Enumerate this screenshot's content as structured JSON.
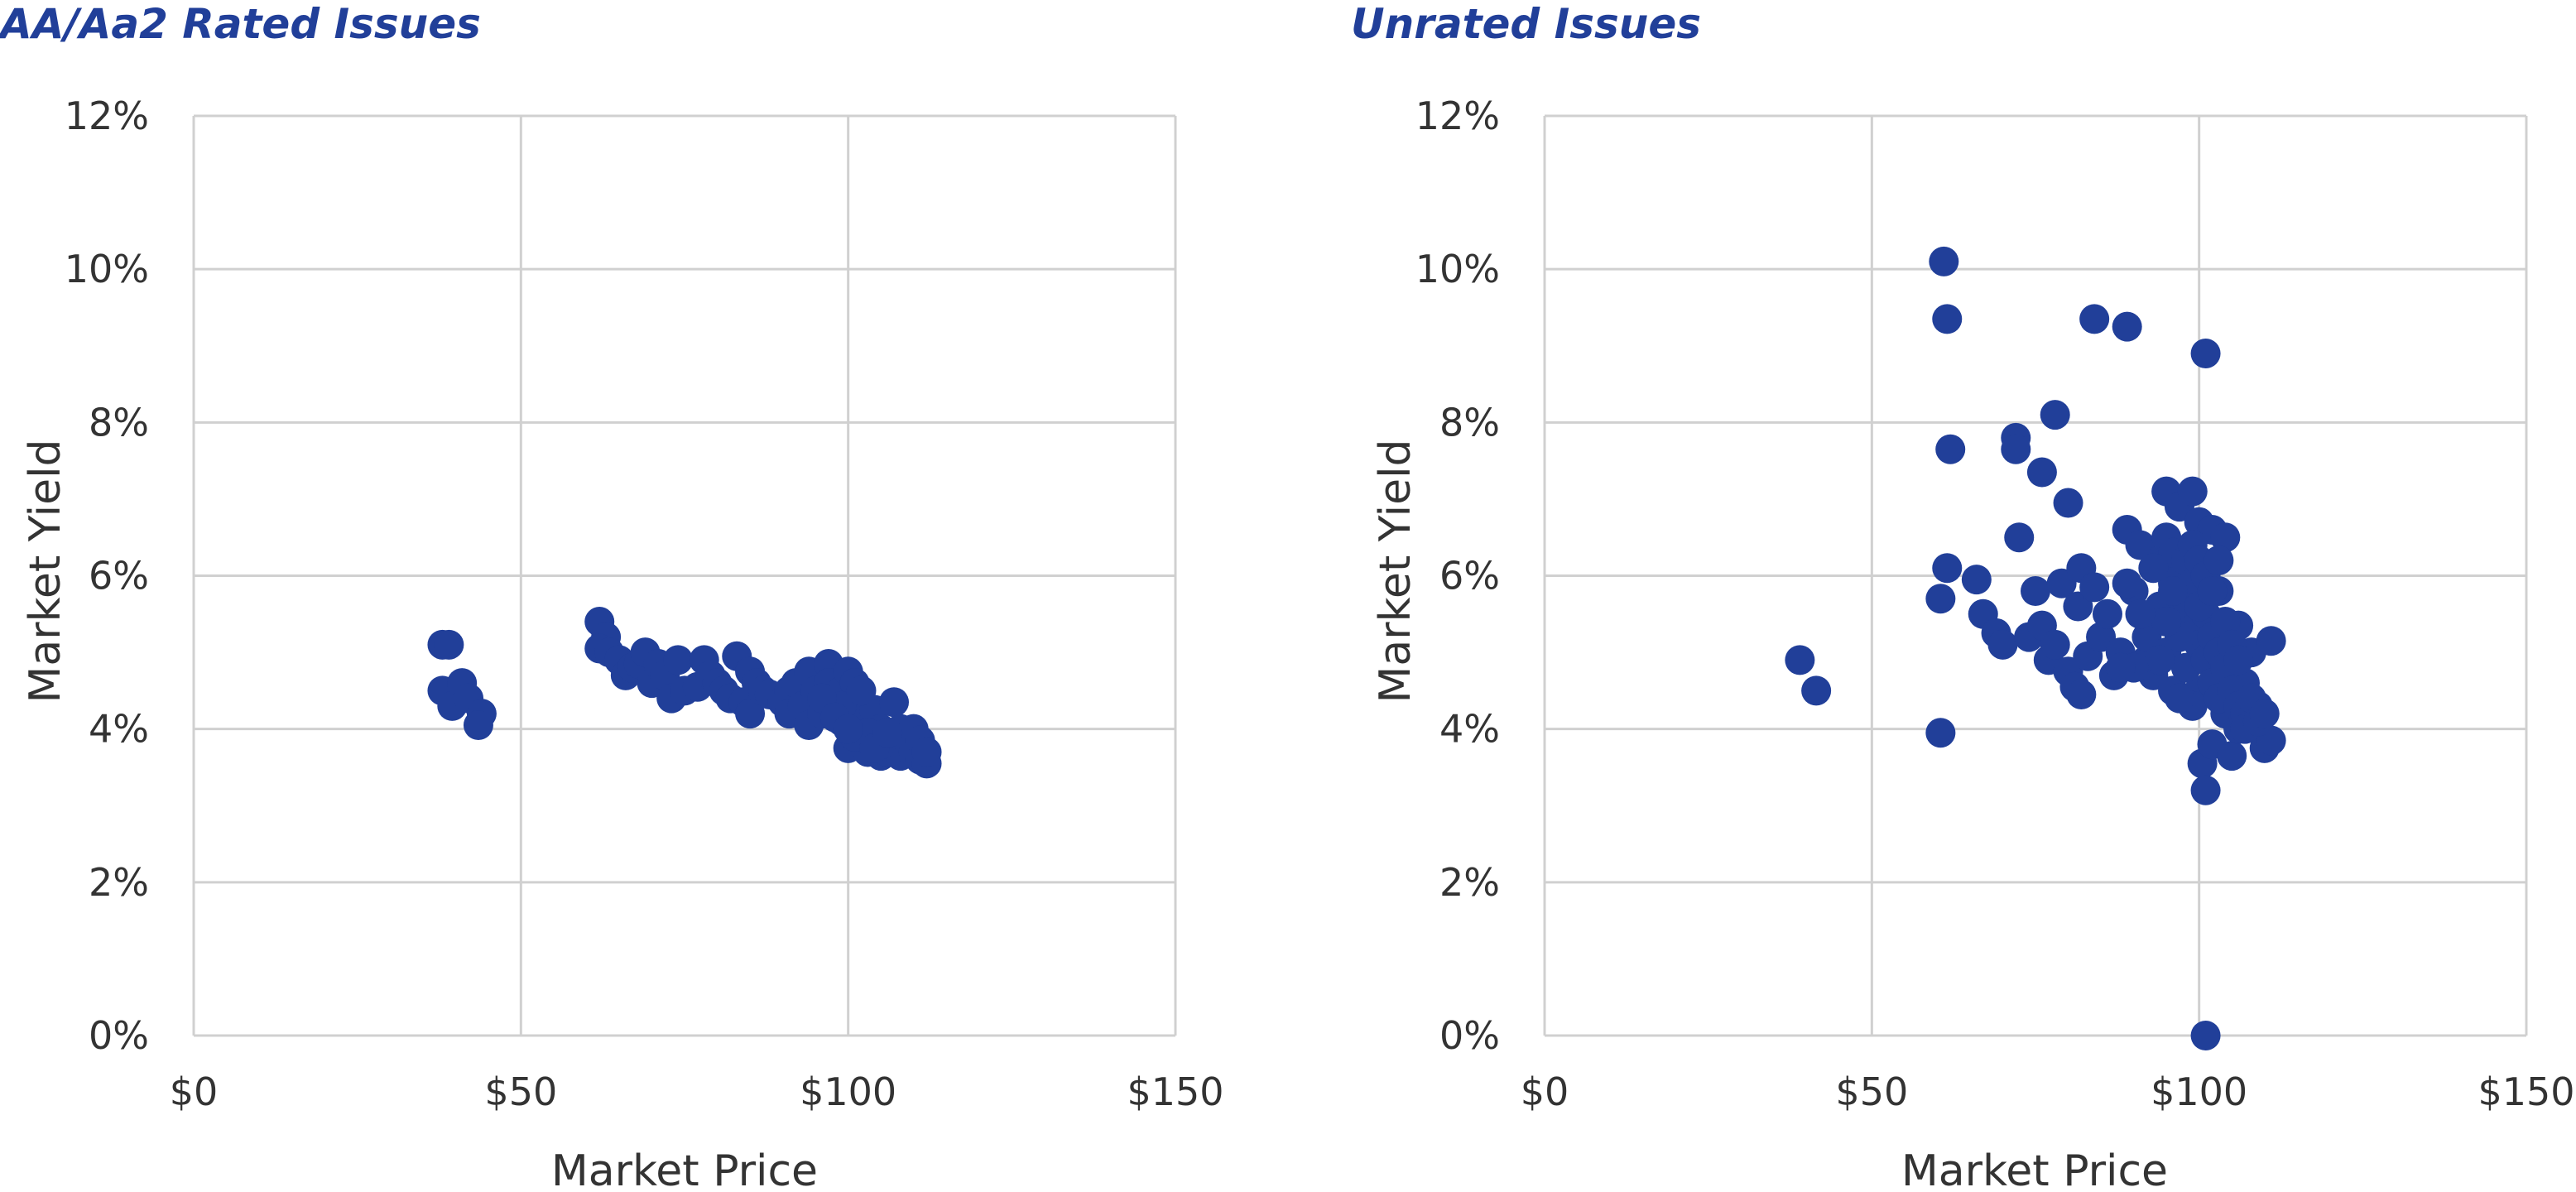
{
  "colors": {
    "marker": "#213f99",
    "title": "#213f99",
    "grid": "#d0d0d0",
    "text": "#333333"
  },
  "chart_data": [
    {
      "type": "scatter",
      "title": "AA/Aa2 Rated Issues",
      "xlabel": "Market Price",
      "ylabel": "Market Yield",
      "xlim": [
        0,
        150
      ],
      "ylim": [
        0,
        12
      ],
      "x_ticks": [
        0,
        50,
        100,
        150
      ],
      "y_ticks": [
        0,
        2,
        4,
        6,
        8,
        10,
        12
      ],
      "x_tick_labels": [
        "$0",
        "$50",
        "$100",
        "$150"
      ],
      "y_tick_labels": [
        "0%",
        "2%",
        "4%",
        "6%",
        "8%",
        "10%",
        "12%"
      ],
      "grid": true,
      "legend": "none",
      "points": [
        [
          38,
          5.1
        ],
        [
          39,
          5.1
        ],
        [
          38,
          4.5
        ],
        [
          39.5,
          4.3
        ],
        [
          41,
          4.6
        ],
        [
          42,
          4.4
        ],
        [
          44,
          4.2
        ],
        [
          43.5,
          4.05
        ],
        [
          62,
          5.4
        ],
        [
          63,
          5.2
        ],
        [
          62,
          5.05
        ],
        [
          63.5,
          5.0
        ],
        [
          65,
          4.9
        ],
        [
          66,
          4.7
        ],
        [
          67,
          4.8
        ],
        [
          68,
          4.85
        ],
        [
          69,
          5.0
        ],
        [
          70,
          4.6
        ],
        [
          71,
          4.85
        ],
        [
          72,
          4.7
        ],
        [
          73,
          4.4
        ],
        [
          74,
          4.9
        ],
        [
          75,
          4.5
        ],
        [
          77,
          4.55
        ],
        [
          78,
          4.9
        ],
        [
          79,
          4.7
        ],
        [
          80,
          4.6
        ],
        [
          81,
          4.5
        ],
        [
          82,
          4.4
        ],
        [
          83,
          4.95
        ],
        [
          84,
          4.35
        ],
        [
          85,
          4.2
        ],
        [
          85,
          4.75
        ],
        [
          86,
          4.6
        ],
        [
          87,
          4.5
        ],
        [
          88,
          4.45
        ],
        [
          90,
          4.35
        ],
        [
          91,
          4.5
        ],
        [
          91,
          4.2
        ],
        [
          92,
          4.6
        ],
        [
          93,
          4.3
        ],
        [
          94,
          4.75
        ],
        [
          94,
          4.05
        ],
        [
          95,
          4.5
        ],
        [
          96,
          4.2
        ],
        [
          97,
          4.85
        ],
        [
          97,
          4.6
        ],
        [
          98,
          4.4
        ],
        [
          99,
          4.1
        ],
        [
          99,
          4.5
        ],
        [
          100,
          4.75
        ],
        [
          100,
          3.75
        ],
        [
          101,
          4.6
        ],
        [
          101,
          4.2
        ],
        [
          102,
          3.95
        ],
        [
          102,
          4.35
        ],
        [
          103,
          3.7
        ],
        [
          103,
          4.1
        ],
        [
          104,
          3.85
        ],
        [
          104,
          4.25
        ],
        [
          105,
          3.65
        ],
        [
          105,
          4.0
        ],
        [
          106,
          3.9
        ],
        [
          106,
          3.7
        ],
        [
          107,
          4.35
        ],
        [
          107,
          3.8
        ],
        [
          108,
          3.65
        ],
        [
          108,
          4.0
        ],
        [
          109,
          3.75
        ],
        [
          109,
          3.9
        ],
        [
          110,
          3.7
        ],
        [
          110,
          4.0
        ],
        [
          111,
          3.85
        ],
        [
          111,
          3.6
        ],
        [
          112,
          3.55
        ],
        [
          112,
          3.7
        ],
        [
          99,
          4.3
        ],
        [
          101,
          3.9
        ],
        [
          103,
          3.95
        ],
        [
          105,
          3.8
        ],
        [
          96,
          4.4
        ],
        [
          98,
          4.15
        ],
        [
          100,
          4.0
        ],
        [
          102,
          4.5
        ],
        [
          104,
          3.75
        ],
        [
          106,
          3.95
        ]
      ]
    },
    {
      "type": "scatter",
      "title": "Unrated Issues",
      "xlabel": "Market Price",
      "ylabel": "Market Yield",
      "xlim": [
        0,
        150
      ],
      "ylim": [
        0,
        12
      ],
      "x_ticks": [
        0,
        50,
        100,
        150
      ],
      "y_ticks": [
        0,
        2,
        4,
        6,
        8,
        10,
        12
      ],
      "x_tick_labels": [
        "$0",
        "$50",
        "$100",
        "$150"
      ],
      "y_tick_labels": [
        "0%",
        "2%",
        "4%",
        "6%",
        "8%",
        "10%",
        "12%"
      ],
      "grid": true,
      "legend": "none",
      "points": [
        [
          39,
          4.9
        ],
        [
          41.5,
          4.5
        ],
        [
          61,
          10.1
        ],
        [
          61.5,
          9.35
        ],
        [
          84,
          9.35
        ],
        [
          89,
          9.25
        ],
        [
          101,
          8.9
        ],
        [
          62,
          7.65
        ],
        [
          72,
          7.8
        ],
        [
          72,
          7.65
        ],
        [
          76,
          7.35
        ],
        [
          78,
          8.1
        ],
        [
          80,
          6.95
        ],
        [
          60.5,
          5.7
        ],
        [
          61.5,
          6.1
        ],
        [
          60.5,
          3.95
        ],
        [
          66,
          5.95
        ],
        [
          67,
          5.5
        ],
        [
          69,
          5.25
        ],
        [
          70,
          5.1
        ],
        [
          72.5,
          6.5
        ],
        [
          74,
          5.2
        ],
        [
          75,
          5.8
        ],
        [
          76,
          5.35
        ],
        [
          77,
          4.9
        ],
        [
          78,
          5.1
        ],
        [
          79,
          5.9
        ],
        [
          80,
          4.75
        ],
        [
          81,
          4.55
        ],
        [
          81.5,
          5.6
        ],
        [
          82,
          6.1
        ],
        [
          82,
          4.45
        ],
        [
          83,
          4.95
        ],
        [
          84,
          5.85
        ],
        [
          85,
          5.2
        ],
        [
          86,
          5.5
        ],
        [
          87,
          4.7
        ],
        [
          88,
          5.0
        ],
        [
          89,
          6.6
        ],
        [
          90,
          5.8
        ],
        [
          91,
          6.4
        ],
        [
          92,
          4.9
        ],
        [
          93,
          5.4
        ],
        [
          94,
          6.2
        ],
        [
          95,
          7.1
        ],
        [
          96,
          5.9
        ],
        [
          97,
          6.9
        ],
        [
          98,
          5.5
        ],
        [
          99,
          7.1
        ],
        [
          100,
          6.7
        ],
        [
          100,
          4.5
        ],
        [
          100.5,
          3.55
        ],
        [
          101,
          3.2
        ],
        [
          101,
          0.0
        ],
        [
          102,
          3.8
        ],
        [
          102,
          6.6
        ],
        [
          103,
          5.8
        ],
        [
          104,
          4.2
        ],
        [
          104,
          6.5
        ],
        [
          105,
          3.65
        ],
        [
          106,
          4.0
        ],
        [
          107,
          4.6
        ],
        [
          108,
          5.0
        ],
        [
          109,
          4.3
        ],
        [
          110,
          3.75
        ],
        [
          111,
          5.15
        ],
        [
          111,
          3.85
        ],
        [
          106,
          5.35
        ],
        [
          92,
          5.2
        ],
        [
          93,
          4.7
        ],
        [
          94,
          5.6
        ],
        [
          95,
          5.0
        ],
        [
          96,
          4.5
        ],
        [
          97,
          6.0
        ],
        [
          98,
          4.8
        ],
        [
          99,
          5.3
        ],
        [
          99,
          4.3
        ],
        [
          100,
          5.9
        ],
        [
          100,
          5.1
        ],
        [
          101,
          5.5
        ],
        [
          101,
          4.9
        ],
        [
          102,
          4.6
        ],
        [
          102,
          5.2
        ],
        [
          103,
          4.4
        ],
        [
          103,
          5.0
        ],
        [
          104,
          4.8
        ],
        [
          104,
          5.4
        ],
        [
          105,
          4.5
        ],
        [
          105,
          5.1
        ],
        [
          106,
          4.3
        ],
        [
          106,
          4.9
        ],
        [
          107,
          4.2
        ],
        [
          107,
          4.0
        ],
        [
          108,
          4.4
        ],
        [
          109,
          4.1
        ],
        [
          110,
          4.2
        ],
        [
          95,
          6.5
        ],
        [
          96,
          6.3
        ],
        [
          97,
          5.2
        ],
        [
          98,
          6.2
        ],
        [
          98,
          5.7
        ],
        [
          99,
          6.4
        ],
        [
          99,
          5.9
        ],
        [
          100,
          6.2
        ],
        [
          100,
          5.6
        ],
        [
          101,
          6.0
        ],
        [
          102,
          5.8
        ],
        [
          103,
          6.2
        ],
        [
          97,
          4.4
        ],
        [
          96,
          5.8
        ],
        [
          94,
          4.9
        ],
        [
          95,
          5.4
        ],
        [
          93,
          6.1
        ],
        [
          91,
          5.5
        ],
        [
          90,
          4.8
        ],
        [
          89,
          5.9
        ],
        [
          88,
          4.8
        ]
      ]
    }
  ]
}
